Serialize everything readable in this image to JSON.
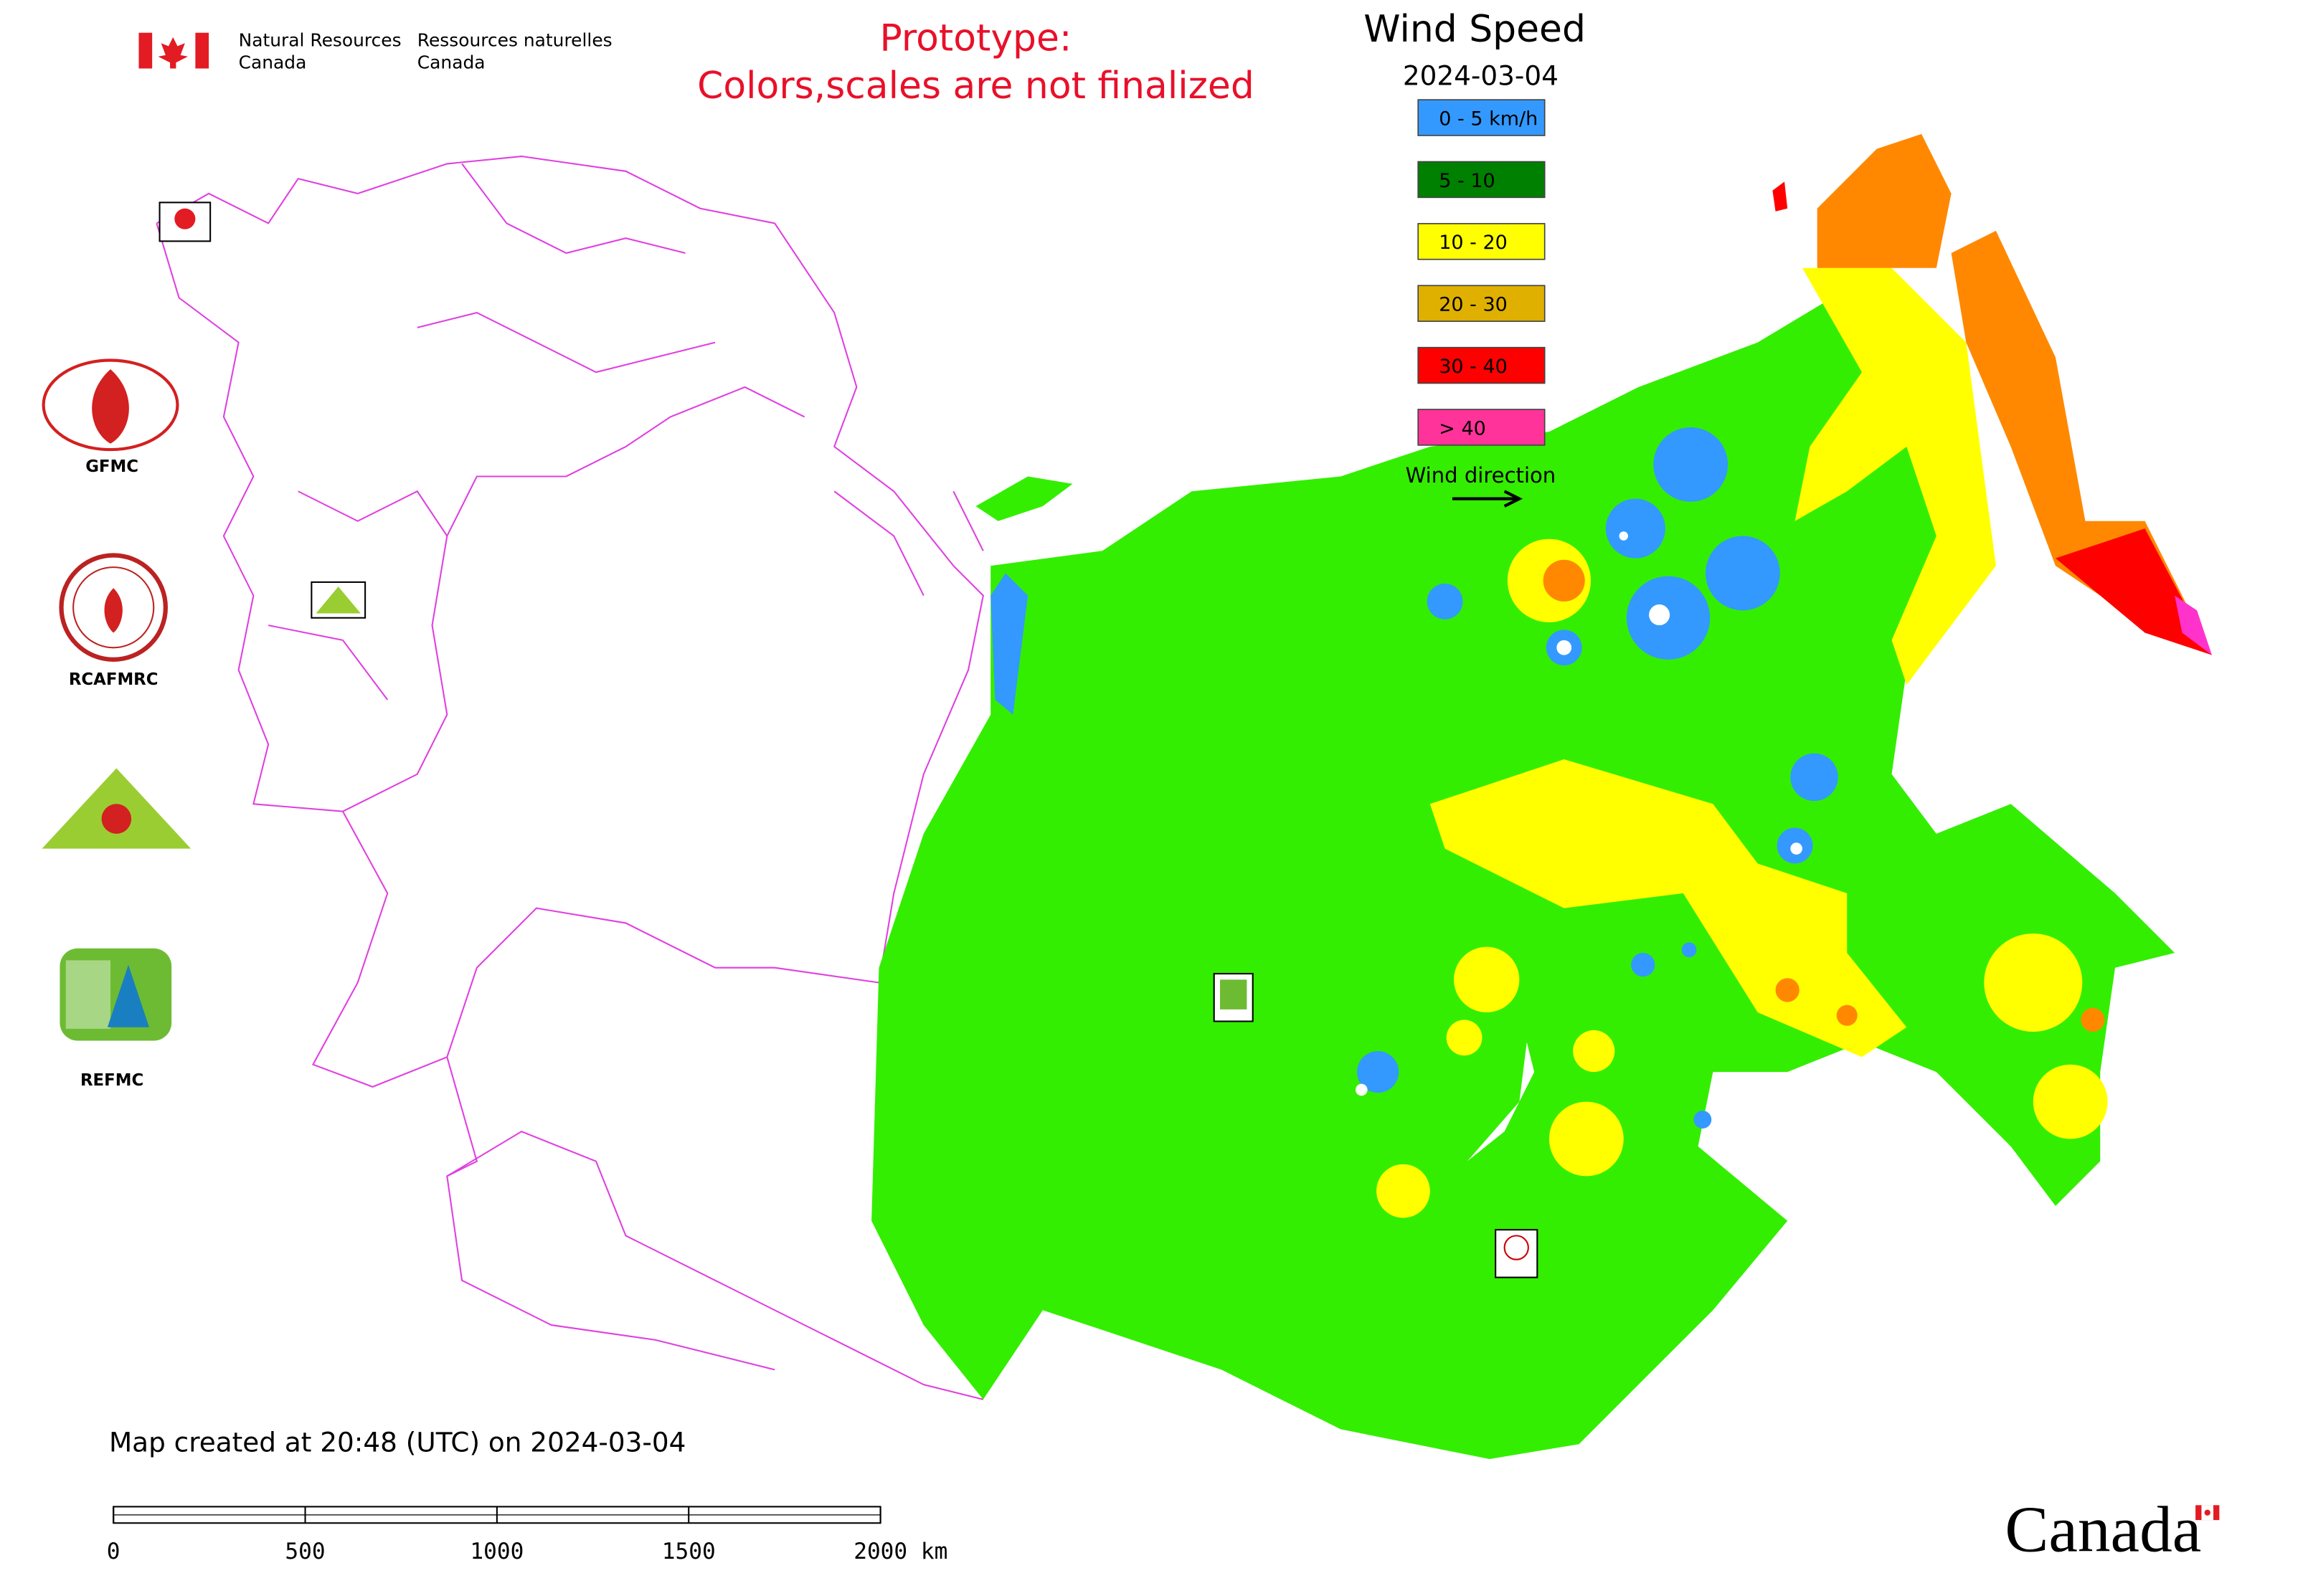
{
  "header": {
    "agency_en": [
      "Natural Resources",
      "Canada"
    ],
    "agency_fr": [
      "Ressources naturelles",
      "Canada"
    ],
    "notice": [
      "Prototype:",
      "Colors,scales are not finalized"
    ]
  },
  "legend": {
    "title": "Wind Speed",
    "date": "2024-03-04",
    "items": [
      {
        "label": "0 - 5 km/h",
        "color": "#3399ff"
      },
      {
        "label": "5 - 10",
        "color": "#008000"
      },
      {
        "label": "10 - 20",
        "color": "#ffff00"
      },
      {
        "label": "20 - 30",
        "color": "#e0b000"
      },
      {
        "label": "30 - 40",
        "color": "#ff0000"
      },
      {
        "label": "> 40",
        "color": "#ff3399"
      }
    ],
    "direction_label": "Wind direction"
  },
  "logos": [
    "GFMC",
    "RCAFMRC",
    "REFMC"
  ],
  "footer": {
    "created": "Map created at 20:48 (UTC) on 2024-03-04",
    "scale_ticks": [
      0,
      500,
      1000,
      1500,
      {
        "value": 2000,
        "label": "2000 km"
      }
    ],
    "wordmark": "Canada"
  }
}
